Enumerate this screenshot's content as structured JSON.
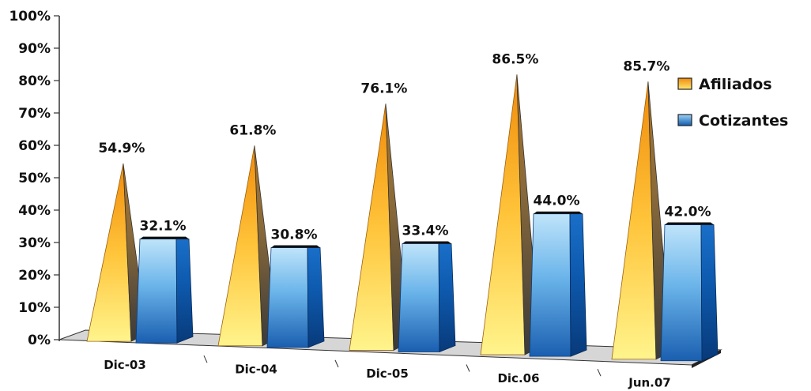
{
  "chart_data": {
    "type": "bar",
    "title": "",
    "xlabel": "",
    "ylabel": "",
    "ylim": [
      0,
      100
    ],
    "y_ticks": [
      "0%",
      "10%",
      "20%",
      "30%",
      "40%",
      "50%",
      "60%",
      "70%",
      "80%",
      "90%",
      "100%"
    ],
    "categories": [
      "Dic-03",
      "Dic-04",
      "Dic-05",
      "Dic.06",
      "Jun.07"
    ],
    "series": [
      {
        "name": "Afiliados",
        "values": [
          54.9,
          61.8,
          76.1,
          86.5,
          85.7
        ],
        "labels": [
          "54.9%",
          "61.8%",
          "76.1%",
          "86.5%",
          "85.7%"
        ],
        "color": "#F5A623"
      },
      {
        "name": "Cotizantes",
        "values": [
          32.1,
          30.8,
          33.4,
          44.0,
          42.0
        ],
        "labels": [
          "32.1%",
          "30.8%",
          "33.4%",
          "44.0%",
          "42.0%"
        ],
        "color": "#1F6FC2"
      }
    ],
    "legend_position": "right",
    "grid": false,
    "style": "3d pyramids and frustums"
  }
}
